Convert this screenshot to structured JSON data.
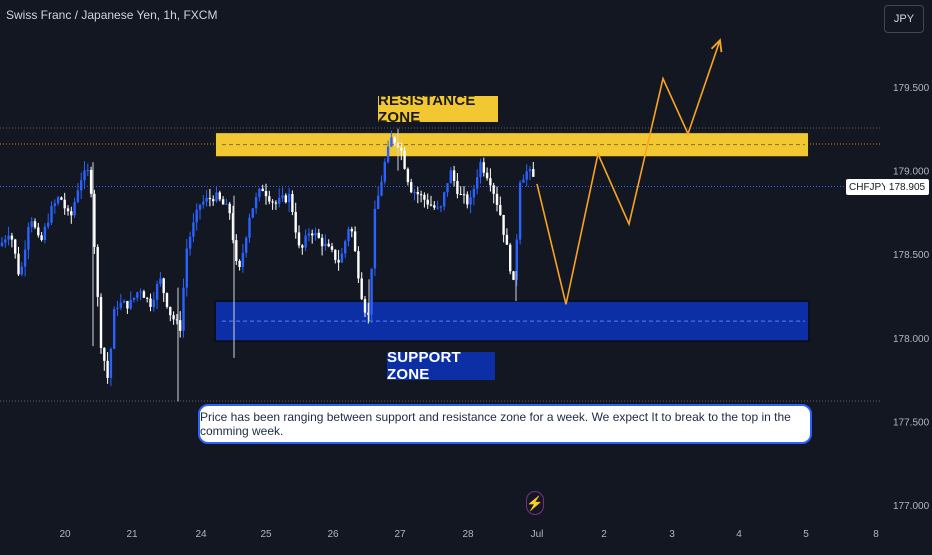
{
  "header": {
    "title": "Swiss Franc / Japanese Yen, 1h, FXCM",
    "currency_button": "JPY"
  },
  "colors": {
    "background": "#131722",
    "up_candle": "#2962ff",
    "down_candle": "#ffffff",
    "resistance": "#f2c832",
    "support": "#0d2fa5",
    "projection": "#f7a325"
  },
  "chart_data": {
    "type": "candlestick",
    "symbol": "CHFJPY",
    "last_price": "178.905",
    "y_ticks": [
      "179.500",
      "179.000",
      "178.500",
      "178.000",
      "177.500",
      "177.000"
    ],
    "ylim": [
      176.9,
      179.85
    ],
    "x_ticks": [
      "20",
      "21",
      "24",
      "25",
      "26",
      "27",
      "28",
      "Jul",
      "2",
      "3",
      "4",
      "5",
      "8"
    ],
    "resistance_zone": {
      "label": "RESISTANCE ZONE",
      "low": 179.08,
      "high": 179.23
    },
    "support_zone": {
      "label": "SUPPORT ZONE",
      "low": 177.98,
      "high": 178.22
    },
    "price_path": [
      [
        0,
        178.55
      ],
      [
        10,
        178.65
      ],
      [
        20,
        178.35
      ],
      [
        30,
        178.75
      ],
      [
        40,
        178.55
      ],
      [
        50,
        178.75
      ],
      [
        60,
        178.85
      ],
      [
        70,
        178.7
      ],
      [
        80,
        178.95
      ],
      [
        90,
        179.0
      ],
      [
        100,
        178.0
      ],
      [
        108,
        177.75
      ],
      [
        115,
        178.2
      ],
      [
        130,
        178.2
      ],
      [
        140,
        178.3
      ],
      [
        150,
        178.2
      ],
      [
        160,
        178.35
      ],
      [
        170,
        178.15
      ],
      [
        180,
        178.05
      ],
      [
        187,
        178.55
      ],
      [
        200,
        178.8
      ],
      [
        215,
        178.85
      ],
      [
        230,
        178.75
      ],
      [
        238,
        178.35
      ],
      [
        250,
        178.75
      ],
      [
        262,
        178.9
      ],
      [
        275,
        178.8
      ],
      [
        290,
        178.85
      ],
      [
        300,
        178.5
      ],
      [
        310,
        178.65
      ],
      [
        325,
        178.55
      ],
      [
        340,
        178.45
      ],
      [
        350,
        178.7
      ],
      [
        362,
        178.25
      ],
      [
        368,
        178.1
      ],
      [
        375,
        178.75
      ],
      [
        385,
        179.05
      ],
      [
        392,
        179.2
      ],
      [
        400,
        179.15
      ],
      [
        410,
        178.9
      ],
      [
        420,
        178.85
      ],
      [
        430,
        178.8
      ],
      [
        440,
        178.75
      ],
      [
        450,
        179.0
      ],
      [
        460,
        178.85
      ],
      [
        470,
        178.8
      ],
      [
        480,
        179.05
      ],
      [
        490,
        178.95
      ],
      [
        500,
        178.75
      ],
      [
        508,
        178.5
      ],
      [
        514,
        178.3
      ],
      [
        520,
        178.95
      ],
      [
        528,
        179.0
      ],
      [
        537,
        178.92
      ]
    ],
    "projection": [
      [
        537,
        178.92
      ],
      [
        566,
        178.2
      ],
      [
        598,
        179.1
      ],
      [
        629,
        178.68
      ],
      [
        663,
        179.55
      ],
      [
        688,
        179.22
      ],
      [
        720,
        179.78
      ]
    ]
  },
  "annotation": {
    "text": "Price has been ranging between support and resistance zone for a week. We expect It to break to the top in the comming week."
  }
}
